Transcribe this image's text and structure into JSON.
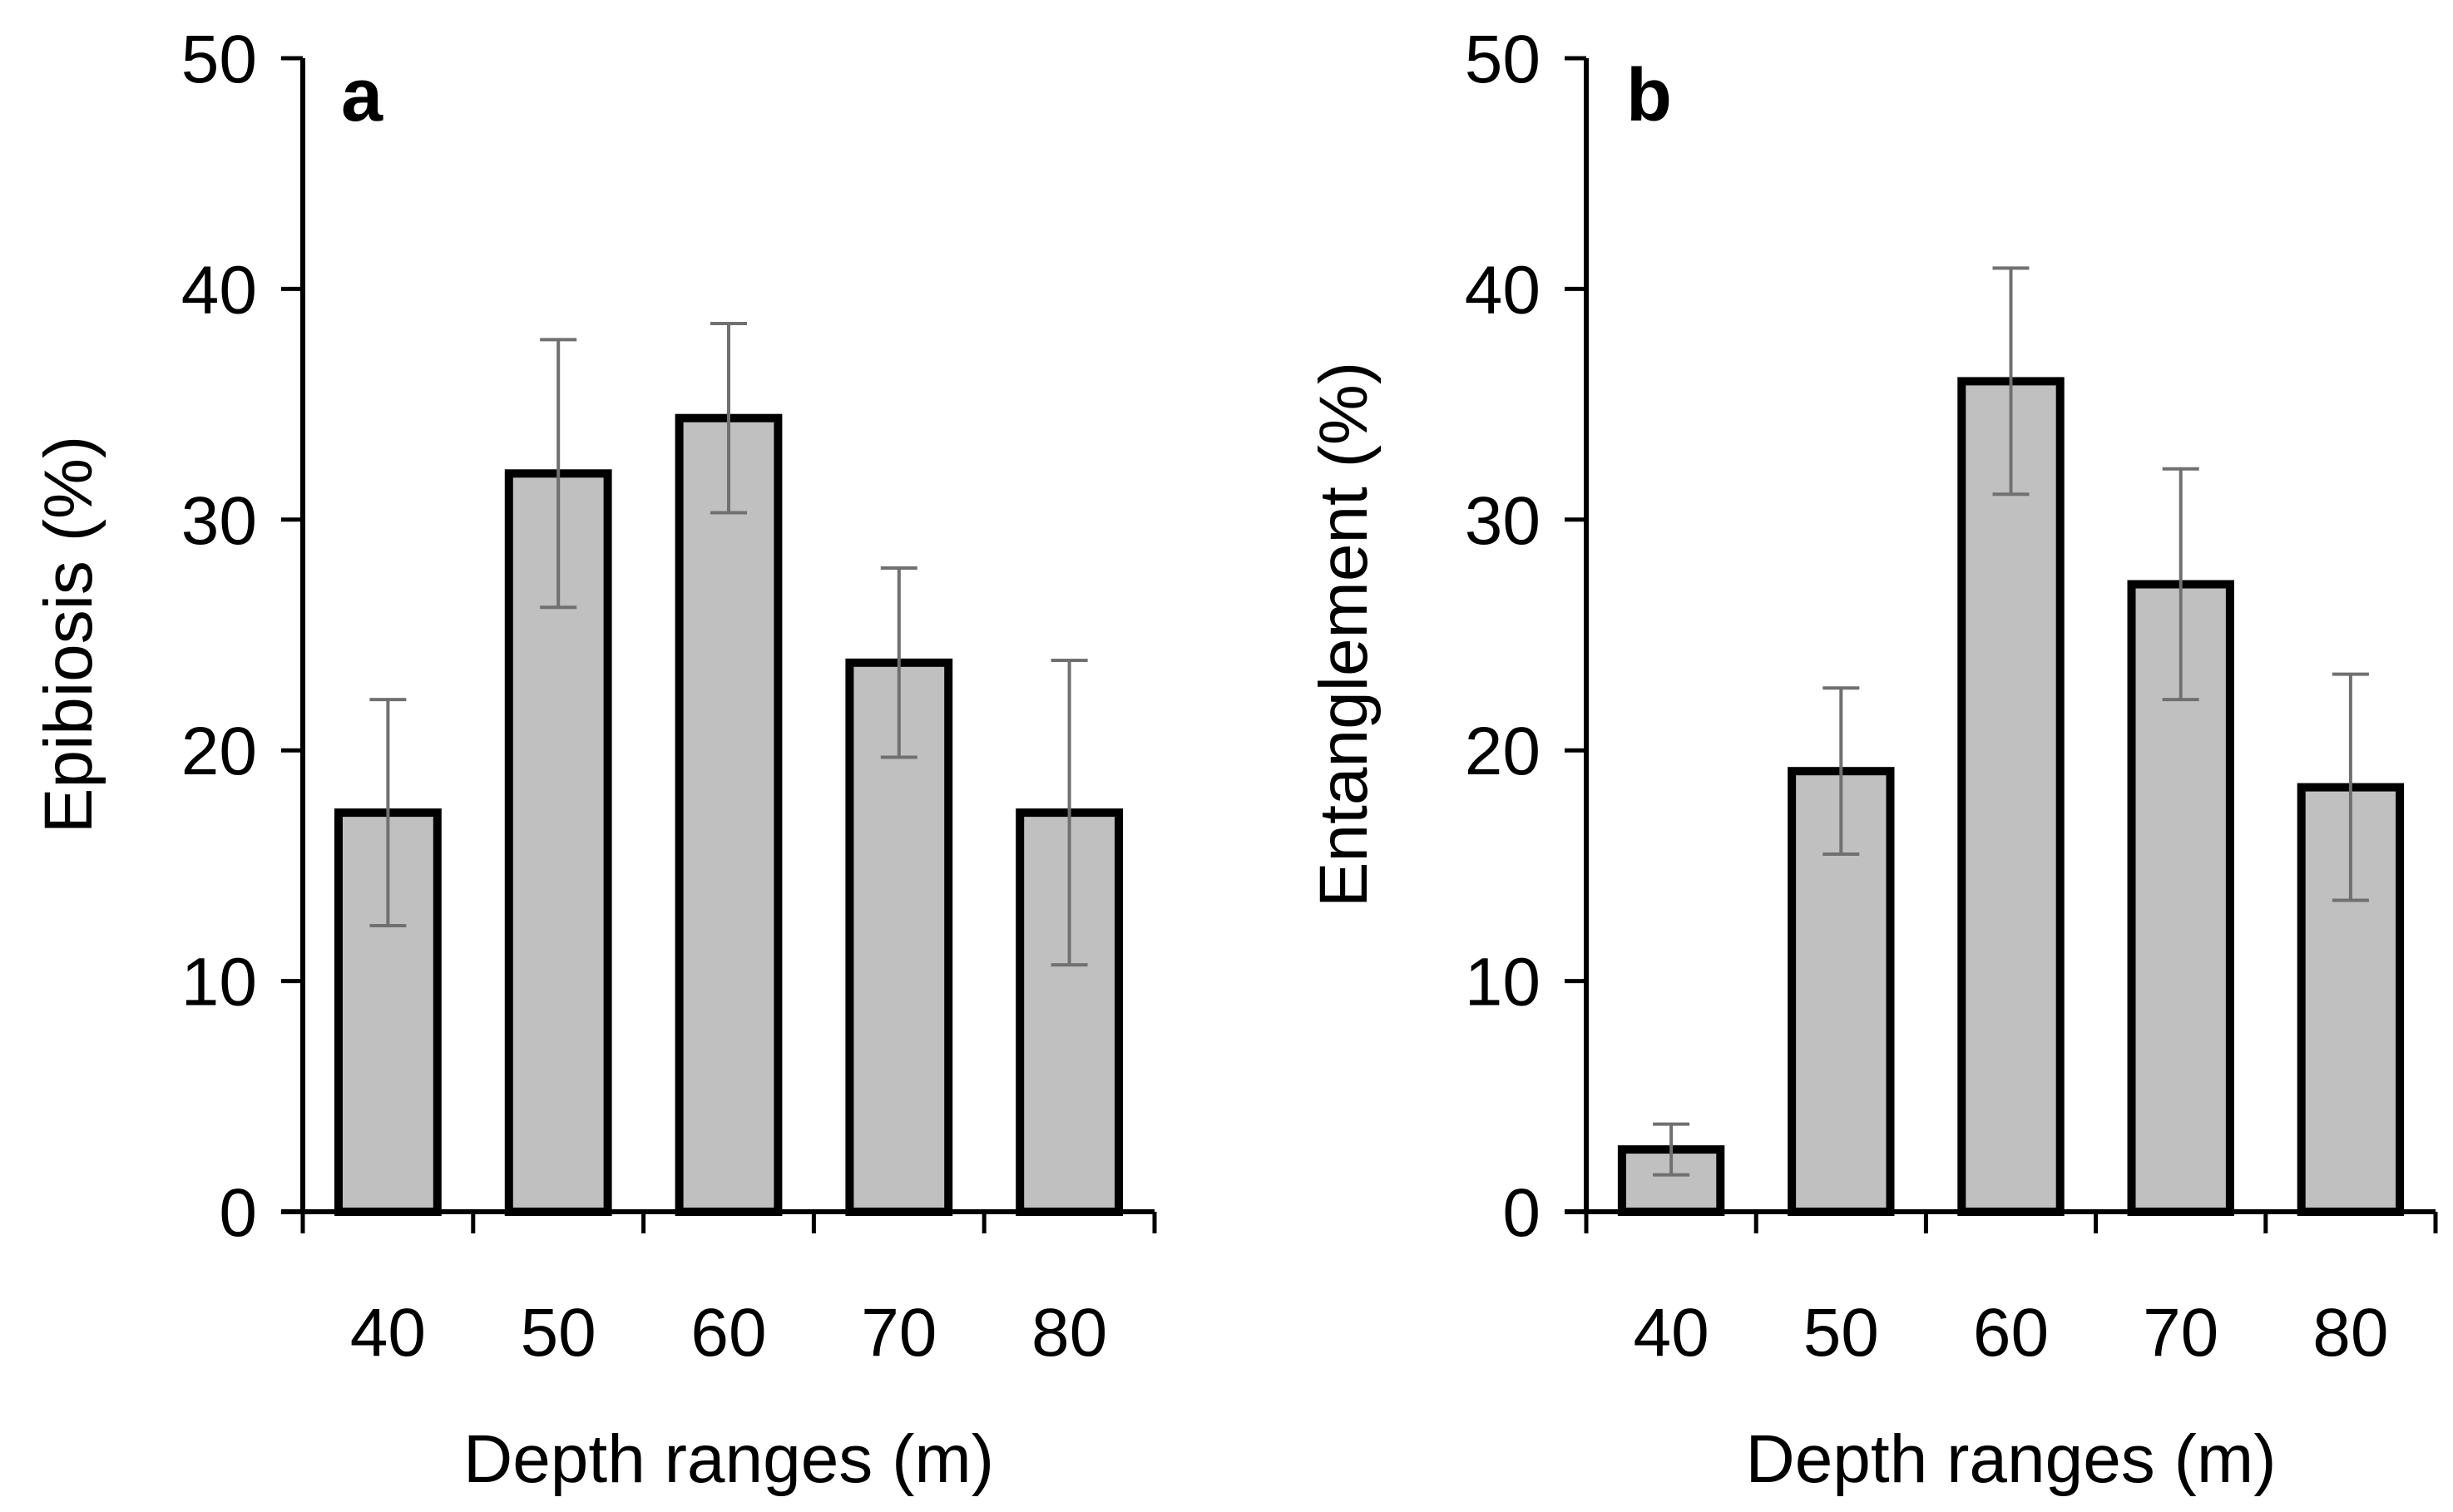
{
  "chart_data": [
    {
      "type": "bar",
      "panel": "a",
      "categories": [
        "40",
        "50",
        "60",
        "70",
        "80"
      ],
      "values": [
        17.3,
        32.0,
        34.4,
        23.8,
        17.3
      ],
      "error": [
        4.9,
        5.8,
        4.1,
        4.1,
        6.6
      ],
      "xlabel": "Depth ranges (m)",
      "ylabel": "Epibiosis (%)",
      "ylim": [
        0,
        50
      ],
      "yticks": [
        "0",
        "10",
        "20",
        "30",
        "40",
        "50"
      ],
      "grid": false,
      "bar_color": "#c0c0c0",
      "bar_edge_color": "#000000",
      "error_color": "#707070"
    },
    {
      "type": "bar",
      "panel": "b",
      "categories": [
        "40",
        "50",
        "60",
        "70",
        "80"
      ],
      "values": [
        2.7,
        19.1,
        36.0,
        27.2,
        18.4
      ],
      "error": [
        1.1,
        3.6,
        4.9,
        5.0,
        4.9
      ],
      "xlabel": "Depth ranges (m)",
      "ylabel": "Entanglement (%)",
      "ylim": [
        0,
        50
      ],
      "yticks": [
        "0",
        "10",
        "20",
        "30",
        "40",
        "50"
      ],
      "grid": false,
      "bar_color": "#c0c0c0",
      "bar_edge_color": "#000000",
      "error_color": "#707070"
    }
  ]
}
